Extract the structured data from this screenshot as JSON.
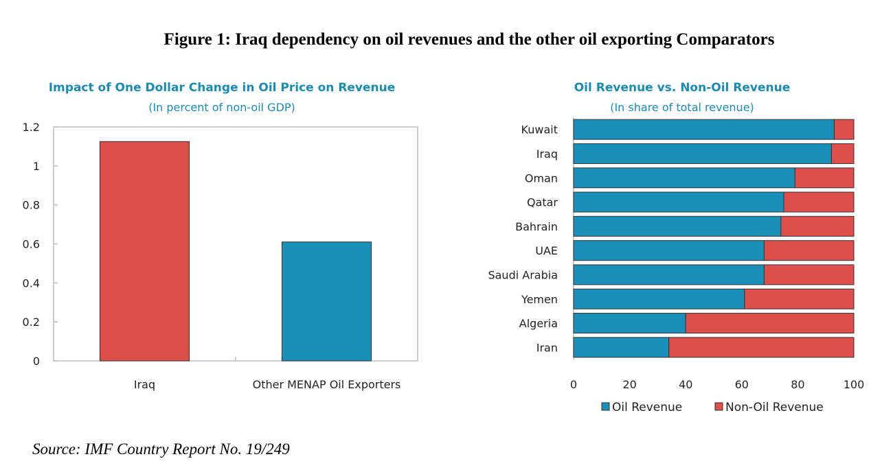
{
  "figure": {
    "title": "Figure 1: Iraq dependency on oil revenues and the other oil exporting Comparators",
    "source": "Source: IMF Country Report No. 19/249"
  },
  "colors": {
    "red": "#de4f4c",
    "blue": "#1a8fb8",
    "title_blue": "#1b8bb5"
  },
  "chart_data": [
    {
      "type": "bar",
      "title": "Impact of One Dollar Change in Oil Price on Revenue",
      "subtitle": "(In percent of non-oil GDP)",
      "categories": [
        "Iraq",
        "Other MENAP Oil Exporters"
      ],
      "values": [
        1.125,
        0.61
      ],
      "ylim": [
        0,
        1.2
      ],
      "yticks": [
        0,
        0.2,
        0.4,
        0.6,
        0.8,
        1,
        1.2
      ],
      "ytick_labels": [
        "0",
        "0.2",
        "0.4",
        "0.6",
        "0.8",
        "1",
        "1.2"
      ],
      "xlabel": "",
      "ylabel": "",
      "grid": false
    },
    {
      "type": "bar",
      "orientation": "horizontal",
      "stacked": true,
      "title": "Oil Revenue  vs. Non-Oil Revenue",
      "subtitle": "(In share of total revenue)",
      "categories": [
        "Kuwait",
        "Iraq",
        "Oman",
        "Qatar",
        "Bahrain",
        "UAE",
        "Saudi Arabia",
        "Yemen",
        "Algeria",
        "Iran"
      ],
      "series": [
        {
          "name": "Oil Revenue",
          "values": [
            93,
            92,
            79,
            75,
            74,
            68,
            68,
            61,
            40,
            34
          ]
        },
        {
          "name": "Non-Oil Revenue",
          "values": [
            7,
            8,
            21,
            25,
            26,
            32,
            32,
            39,
            60,
            66
          ]
        }
      ],
      "xlim": [
        0,
        100
      ],
      "xticks": [
        0,
        20,
        40,
        60,
        80,
        100
      ],
      "xtick_labels": [
        "0",
        "20",
        "40",
        "60",
        "80",
        "100"
      ],
      "legend": "bottom",
      "grid": false
    }
  ]
}
